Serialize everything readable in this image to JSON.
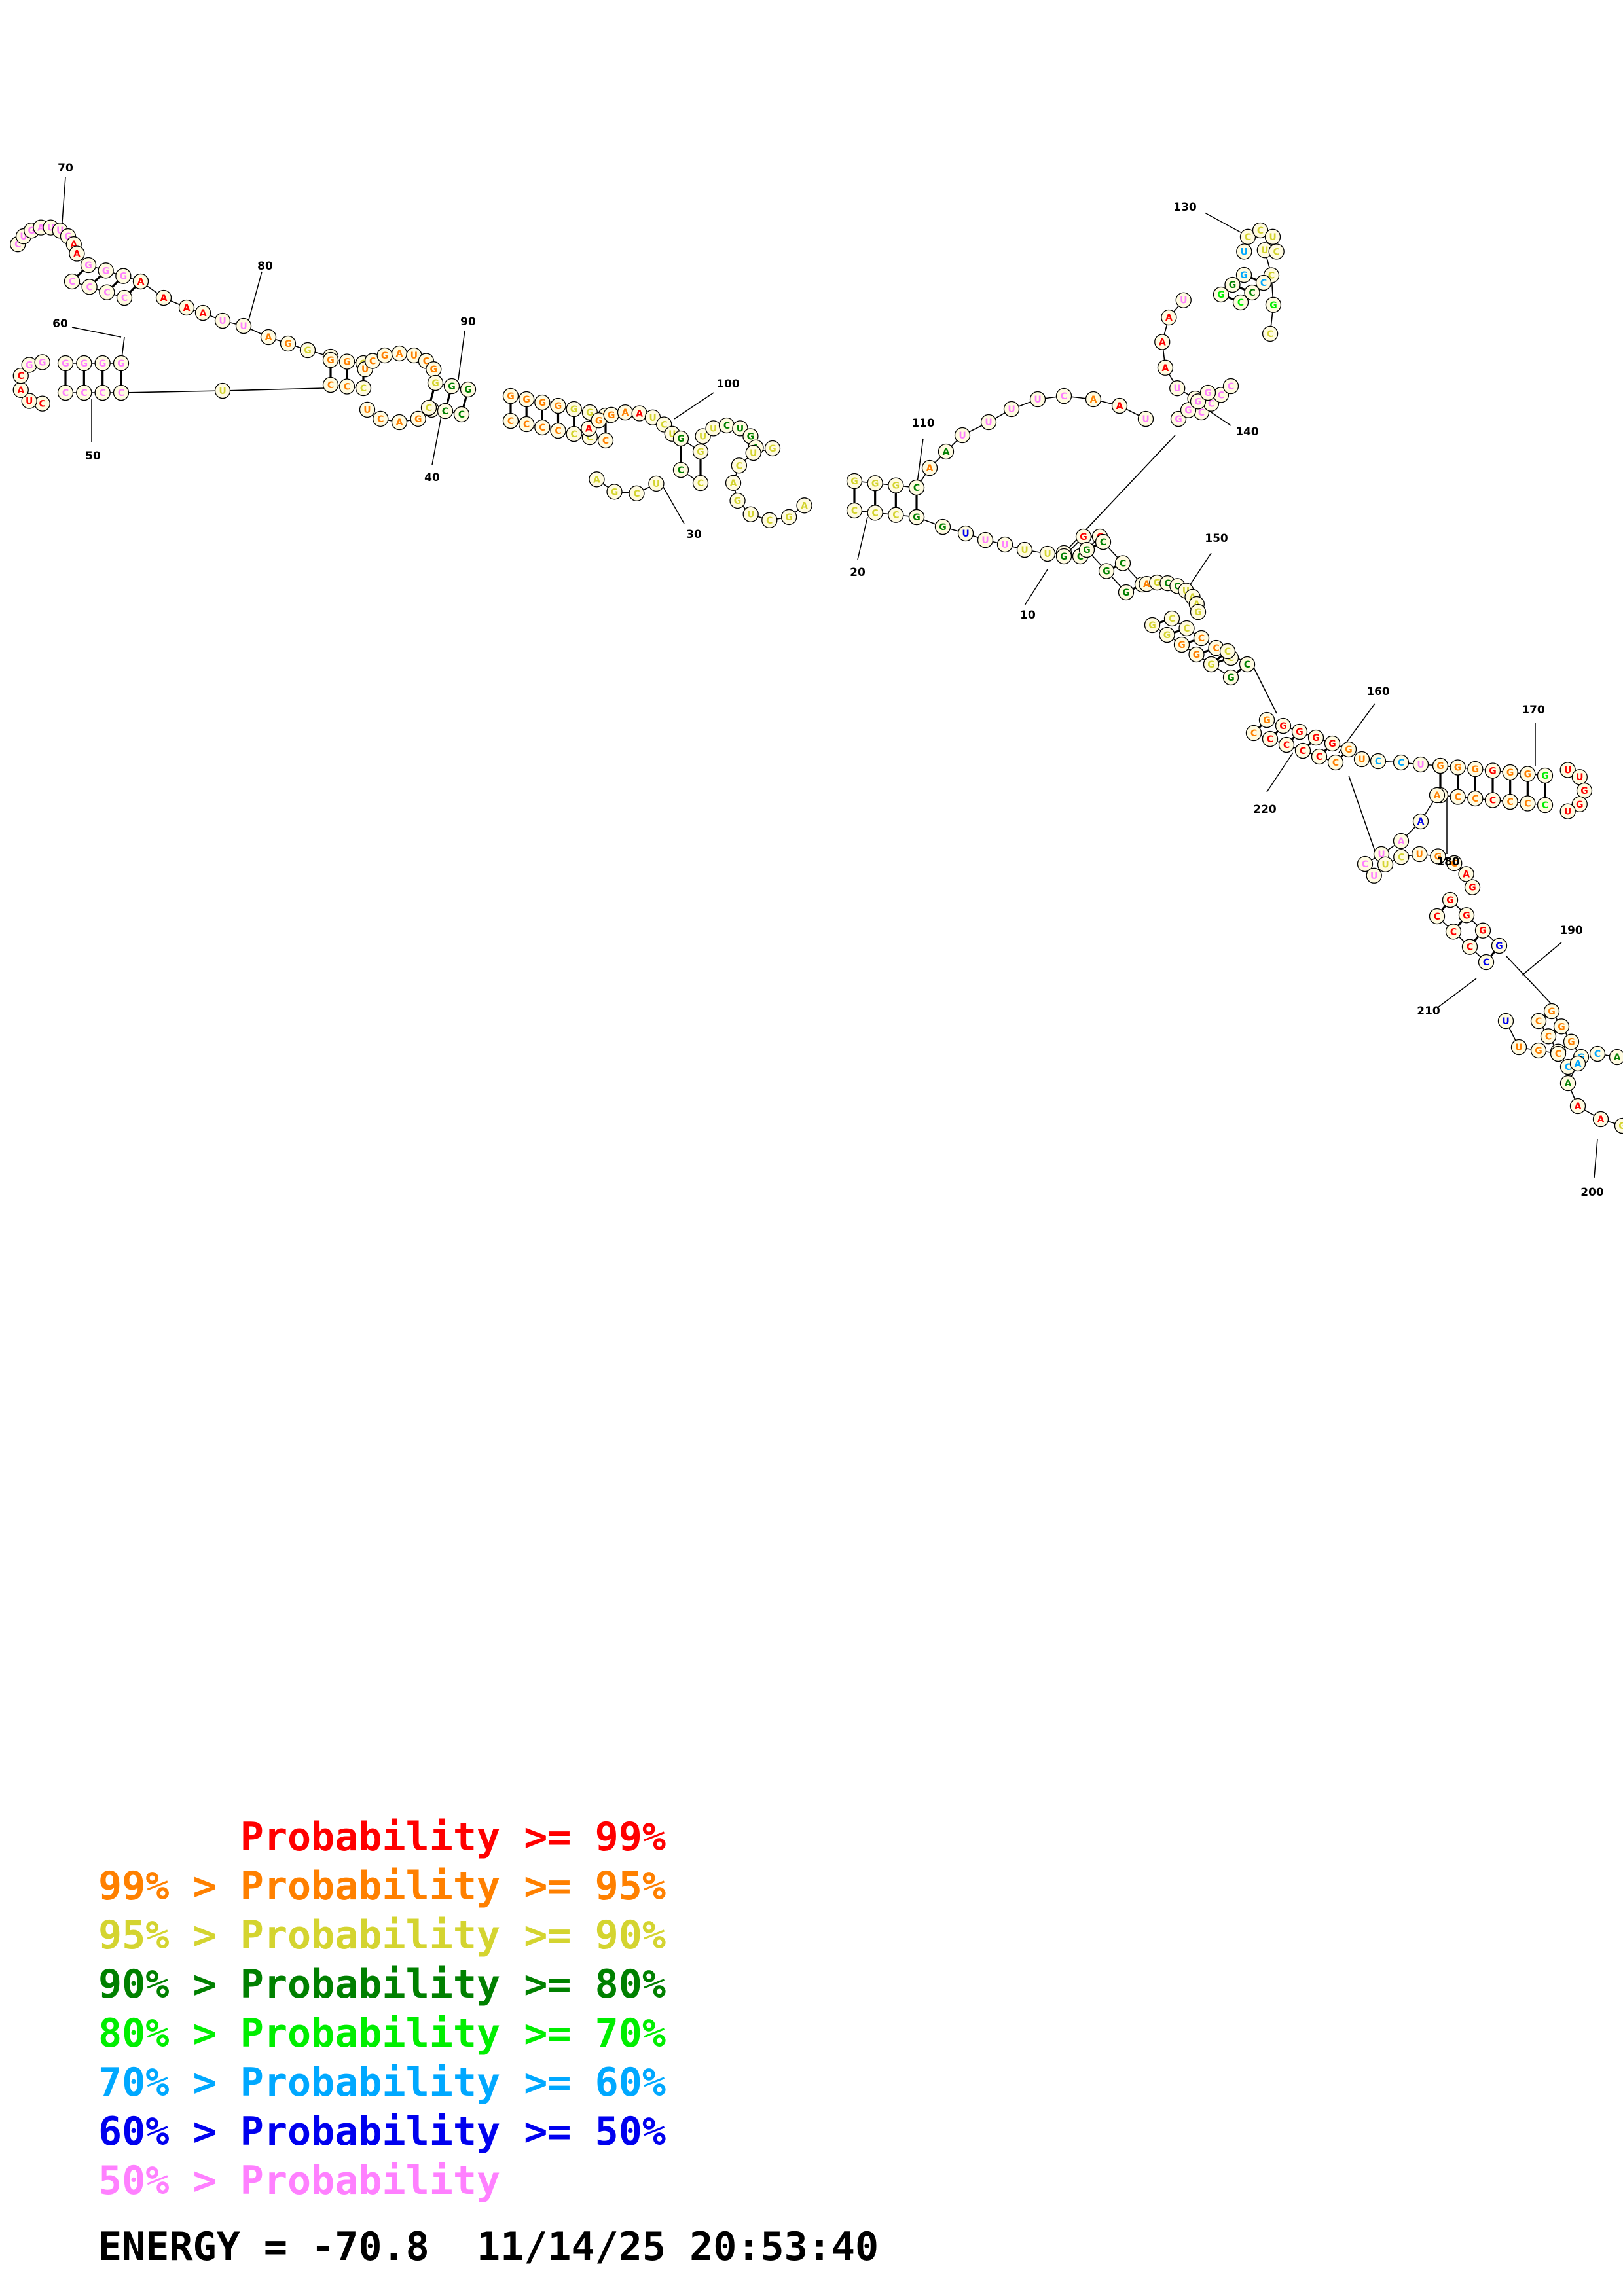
{
  "colors": {
    "p99": "#ff0000",
    "p95": "#ff8000",
    "p90": "#d4d430",
    "p80": "#008000",
    "p70": "#00ee00",
    "p60": "#00a8ff",
    "p50": "#0000ee",
    "plow": "#ff80ff"
  },
  "legend": [
    {
      "text": "      Probability >= 99%",
      "color": "#ff0000"
    },
    {
      "text": "99% > Probability >= 95%",
      "color": "#ff8000"
    },
    {
      "text": "95% > Probability >= 90%",
      "color": "#d4d430"
    },
    {
      "text": "90% > Probability >= 80%",
      "color": "#008000"
    },
    {
      "text": "80% > Probability >= 70%",
      "color": "#00ee00"
    },
    {
      "text": "70% > Probability >= 60%",
      "color": "#00a8ff"
    },
    {
      "text": "60% > Probability >= 50%",
      "color": "#0000ee"
    },
    {
      "text": "50% > Probability",
      "color": "#ff80ff"
    }
  ],
  "energy_line": "ENERGY = -70.8  11/14/25 20:53:40",
  "position_labels": [
    "10",
    "20",
    "30",
    "40",
    "50",
    "60",
    "70",
    "80",
    "90",
    "100",
    "110",
    "130",
    "140",
    "150",
    "160",
    "170",
    "180",
    "190",
    "200",
    "210",
    "220"
  ]
}
